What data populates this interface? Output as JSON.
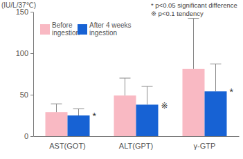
{
  "chart_data": {
    "type": "bar",
    "y_label": "(IU/L/37℃)",
    "categories": [
      "AST(GOT)",
      "ALT(GPT)",
      "γ-GTP"
    ],
    "series": [
      {
        "name": "Before ingestion",
        "color": "#f9b9c3",
        "values": [
          29,
          49,
          81
        ],
        "errors": [
          10,
          21,
          61
        ]
      },
      {
        "name": "After 4 weeks ingestion",
        "color": "#1762d4",
        "values": [
          25,
          38,
          54
        ],
        "errors": [
          8,
          22,
          33
        ],
        "significance": [
          "*",
          "※",
          "*"
        ]
      }
    ],
    "annotations": [
      "* p<0.05 significant difference",
      "※ p<0.1 tendency"
    ],
    "ylim": [
      0,
      150
    ],
    "yticks": [
      0,
      50,
      100,
      150
    ],
    "grid": false,
    "legend": "upper left"
  }
}
